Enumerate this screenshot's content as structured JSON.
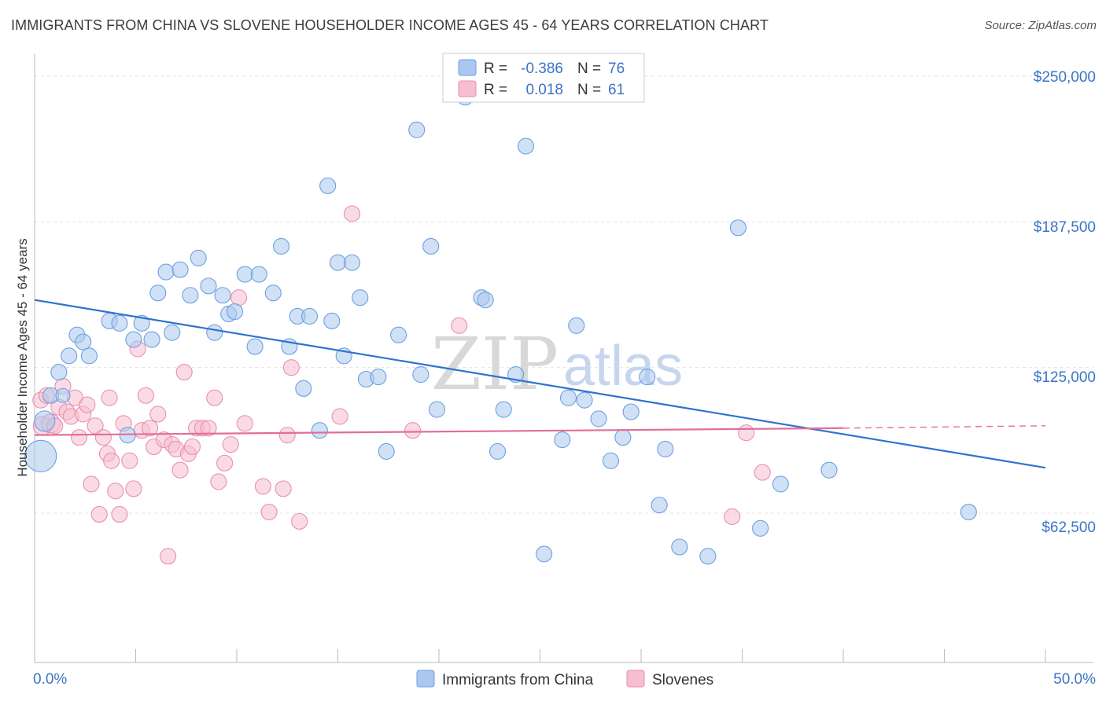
{
  "title": "IMMIGRANTS FROM CHINA VS SLOVENE HOUSEHOLDER INCOME AGES 45 - 64 YEARS CORRELATION CHART",
  "source": "Source: ZipAtlas.com",
  "watermark": {
    "zip": "ZIP",
    "atlas": "atlas"
  },
  "legend": {
    "r_label": "R =",
    "n_label": "N =",
    "rows": [
      {
        "r": "-0.386",
        "n": "76"
      },
      {
        "r": "0.018",
        "n": "61"
      }
    ]
  },
  "colors": {
    "china_fill": "#aac8ef",
    "china_stroke": "#6d9fe0",
    "china_line": "#2f72d0",
    "slovene_fill": "#f6bed0",
    "slovene_stroke": "#ea8fae",
    "slovene_line": "#e26e97",
    "axis_text": "#3b74c6",
    "grid": "#e3e3e3"
  },
  "chart_data": {
    "type": "scatter",
    "title": "IMMIGRANTS FROM CHINA VS SLOVENE HOUSEHOLDER INCOME AGES 45 - 64 YEARS CORRELATION CHART",
    "xlabel": "",
    "ylabel": "Householder Income Ages 45 - 64 years",
    "xlim": [
      0,
      50
    ],
    "ylim": [
      5000,
      265000
    ],
    "x_tick_labels": [
      "0.0%",
      "50.0%"
    ],
    "y_ticks": [
      62500,
      125000,
      187500,
      250000
    ],
    "y_tick_labels": [
      "$62,500",
      "$125,000",
      "$187,500",
      "$250,000"
    ],
    "grid": true,
    "legend_position": "top-center",
    "series": [
      {
        "name": "Immigrants from China",
        "r": -0.386,
        "n": 76,
        "trend": {
          "x0": 0,
          "y0": 154000,
          "x1": 50,
          "y1": 82000
        },
        "points": [
          [
            0.3,
            87000,
            20
          ],
          [
            0.5,
            102000,
            13
          ],
          [
            0.8,
            113000,
            10
          ],
          [
            1.2,
            123000,
            10
          ],
          [
            1.4,
            113000,
            9
          ],
          [
            1.7,
            130000,
            10
          ],
          [
            2.1,
            139000,
            10
          ],
          [
            2.4,
            136000,
            10
          ],
          [
            2.7,
            130000,
            10
          ],
          [
            3.7,
            145000,
            10
          ],
          [
            4.2,
            144000,
            10
          ],
          [
            4.6,
            96000,
            10
          ],
          [
            4.9,
            137000,
            10
          ],
          [
            5.3,
            144000,
            10
          ],
          [
            5.8,
            137000,
            10
          ],
          [
            6.1,
            157000,
            10
          ],
          [
            6.5,
            166000,
            10
          ],
          [
            6.8,
            140000,
            10
          ],
          [
            7.2,
            167000,
            10
          ],
          [
            7.7,
            156000,
            10
          ],
          [
            8.1,
            172000,
            10
          ],
          [
            8.6,
            160000,
            10
          ],
          [
            8.9,
            140000,
            10
          ],
          [
            9.3,
            156000,
            10
          ],
          [
            9.6,
            148000,
            10
          ],
          [
            9.9,
            149000,
            10
          ],
          [
            10.4,
            165000,
            10
          ],
          [
            10.9,
            134000,
            10
          ],
          [
            11.1,
            165000,
            10
          ],
          [
            11.8,
            157000,
            10
          ],
          [
            12.2,
            177000,
            10
          ],
          [
            12.6,
            134000,
            10
          ],
          [
            13.0,
            147000,
            10
          ],
          [
            13.3,
            116000,
            10
          ],
          [
            13.6,
            147000,
            10
          ],
          [
            14.1,
            98000,
            10
          ],
          [
            14.5,
            203000,
            10
          ],
          [
            14.7,
            145000,
            10
          ],
          [
            15.0,
            170000,
            10
          ],
          [
            15.3,
            130000,
            10
          ],
          [
            15.7,
            170000,
            10
          ],
          [
            16.1,
            155000,
            10
          ],
          [
            16.4,
            120000,
            10
          ],
          [
            17.0,
            121000,
            10
          ],
          [
            17.4,
            89000,
            10
          ],
          [
            18.0,
            139000,
            10
          ],
          [
            18.9,
            227000,
            10
          ],
          [
            19.1,
            122000,
            10
          ],
          [
            19.6,
            177000,
            10
          ],
          [
            19.9,
            107000,
            10
          ],
          [
            21.3,
            241000,
            10
          ],
          [
            22.1,
            155000,
            10
          ],
          [
            22.3,
            154000,
            10
          ],
          [
            22.9,
            89000,
            10
          ],
          [
            23.2,
            107000,
            10
          ],
          [
            23.8,
            122000,
            10
          ],
          [
            24.3,
            220000,
            10
          ],
          [
            25.2,
            45000,
            10
          ],
          [
            26.1,
            94000,
            10
          ],
          [
            26.4,
            112000,
            10
          ],
          [
            26.8,
            143000,
            10
          ],
          [
            27.2,
            111000,
            10
          ],
          [
            27.9,
            103000,
            10
          ],
          [
            28.5,
            85000,
            10
          ],
          [
            29.1,
            95000,
            10
          ],
          [
            29.5,
            106000,
            10
          ],
          [
            30.3,
            121000,
            10
          ],
          [
            30.9,
            66000,
            10
          ],
          [
            31.2,
            90000,
            10
          ],
          [
            31.9,
            48000,
            10
          ],
          [
            33.3,
            44000,
            10
          ],
          [
            34.8,
            185000,
            10
          ],
          [
            35.9,
            56000,
            10
          ],
          [
            36.9,
            75000,
            10
          ],
          [
            39.3,
            81000,
            10
          ],
          [
            46.2,
            63000,
            10
          ]
        ]
      },
      {
        "name": "Slovenes",
        "r": 0.018,
        "n": 61,
        "trend": {
          "x0": 0,
          "y0": 96000,
          "x1": 40,
          "y1": 99000
        },
        "trend_dashed": {
          "x0": 40,
          "y0": 99000,
          "x1": 50,
          "y1": 100000
        },
        "points": [
          [
            0.3,
            111000,
            10
          ],
          [
            0.4,
            100000,
            12
          ],
          [
            0.6,
            113000,
            10
          ],
          [
            0.8,
            101000,
            12
          ],
          [
            1.0,
            100000,
            10
          ],
          [
            1.2,
            108000,
            10
          ],
          [
            1.4,
            117000,
            10
          ],
          [
            1.6,
            106000,
            10
          ],
          [
            1.8,
            104000,
            10
          ],
          [
            2.0,
            112000,
            10
          ],
          [
            2.2,
            95000,
            10
          ],
          [
            2.4,
            105000,
            10
          ],
          [
            2.6,
            109000,
            10
          ],
          [
            2.8,
            75000,
            10
          ],
          [
            3.0,
            100000,
            10
          ],
          [
            3.2,
            62000,
            10
          ],
          [
            3.4,
            95000,
            10
          ],
          [
            3.6,
            88000,
            10
          ],
          [
            3.7,
            112000,
            10
          ],
          [
            3.8,
            85000,
            10
          ],
          [
            4.0,
            72000,
            10
          ],
          [
            4.2,
            62000,
            10
          ],
          [
            4.4,
            101000,
            10
          ],
          [
            4.7,
            85000,
            10
          ],
          [
            4.9,
            73000,
            10
          ],
          [
            5.1,
            133000,
            10
          ],
          [
            5.3,
            98000,
            10
          ],
          [
            5.5,
            113000,
            10
          ],
          [
            5.7,
            99000,
            10
          ],
          [
            5.9,
            91000,
            10
          ],
          [
            6.1,
            105000,
            10
          ],
          [
            6.4,
            94000,
            10
          ],
          [
            6.6,
            44000,
            10
          ],
          [
            6.8,
            92000,
            10
          ],
          [
            7.0,
            90000,
            10
          ],
          [
            7.2,
            81000,
            10
          ],
          [
            7.4,
            123000,
            10
          ],
          [
            7.6,
            88000,
            10
          ],
          [
            7.8,
            91000,
            10
          ],
          [
            8.0,
            99000,
            10
          ],
          [
            8.3,
            99000,
            10
          ],
          [
            8.6,
            99000,
            10
          ],
          [
            8.9,
            112000,
            10
          ],
          [
            9.1,
            76000,
            10
          ],
          [
            9.4,
            84000,
            10
          ],
          [
            9.7,
            92000,
            10
          ],
          [
            10.1,
            155000,
            10
          ],
          [
            10.4,
            101000,
            10
          ],
          [
            11.3,
            74000,
            10
          ],
          [
            11.6,
            63000,
            10
          ],
          [
            12.3,
            73000,
            10
          ],
          [
            12.5,
            96000,
            10
          ],
          [
            12.7,
            125000,
            10
          ],
          [
            13.1,
            59000,
            10
          ],
          [
            15.1,
            104000,
            10
          ],
          [
            15.7,
            191000,
            10
          ],
          [
            18.7,
            98000,
            10
          ],
          [
            21.0,
            143000,
            10
          ],
          [
            34.5,
            61000,
            10
          ],
          [
            35.2,
            97000,
            10
          ],
          [
            36.0,
            80000,
            10
          ]
        ]
      }
    ]
  }
}
